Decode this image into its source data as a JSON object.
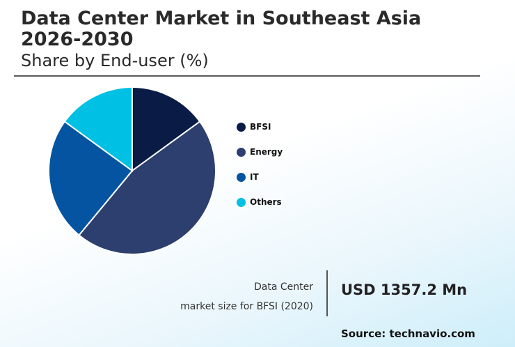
{
  "header": {
    "title": "Data Center Market in Southeast Asia 2026-2030",
    "subtitle": "Share by End-user (%)"
  },
  "chart_data": {
    "type": "pie",
    "categories": [
      "BFSI",
      "Energy",
      "IT",
      "Others"
    ],
    "values": [
      15,
      46,
      24,
      15
    ],
    "colors": [
      "#0a1b45",
      "#2c3f6e",
      "#0454a1",
      "#00c0e3"
    ],
    "legend_position": "right"
  },
  "market": {
    "label_line1": "Data Center",
    "label_line2": "market size for BFSI (2020)",
    "value": "USD 1357.2 Mn"
  },
  "source": "Source: technavio.com"
}
